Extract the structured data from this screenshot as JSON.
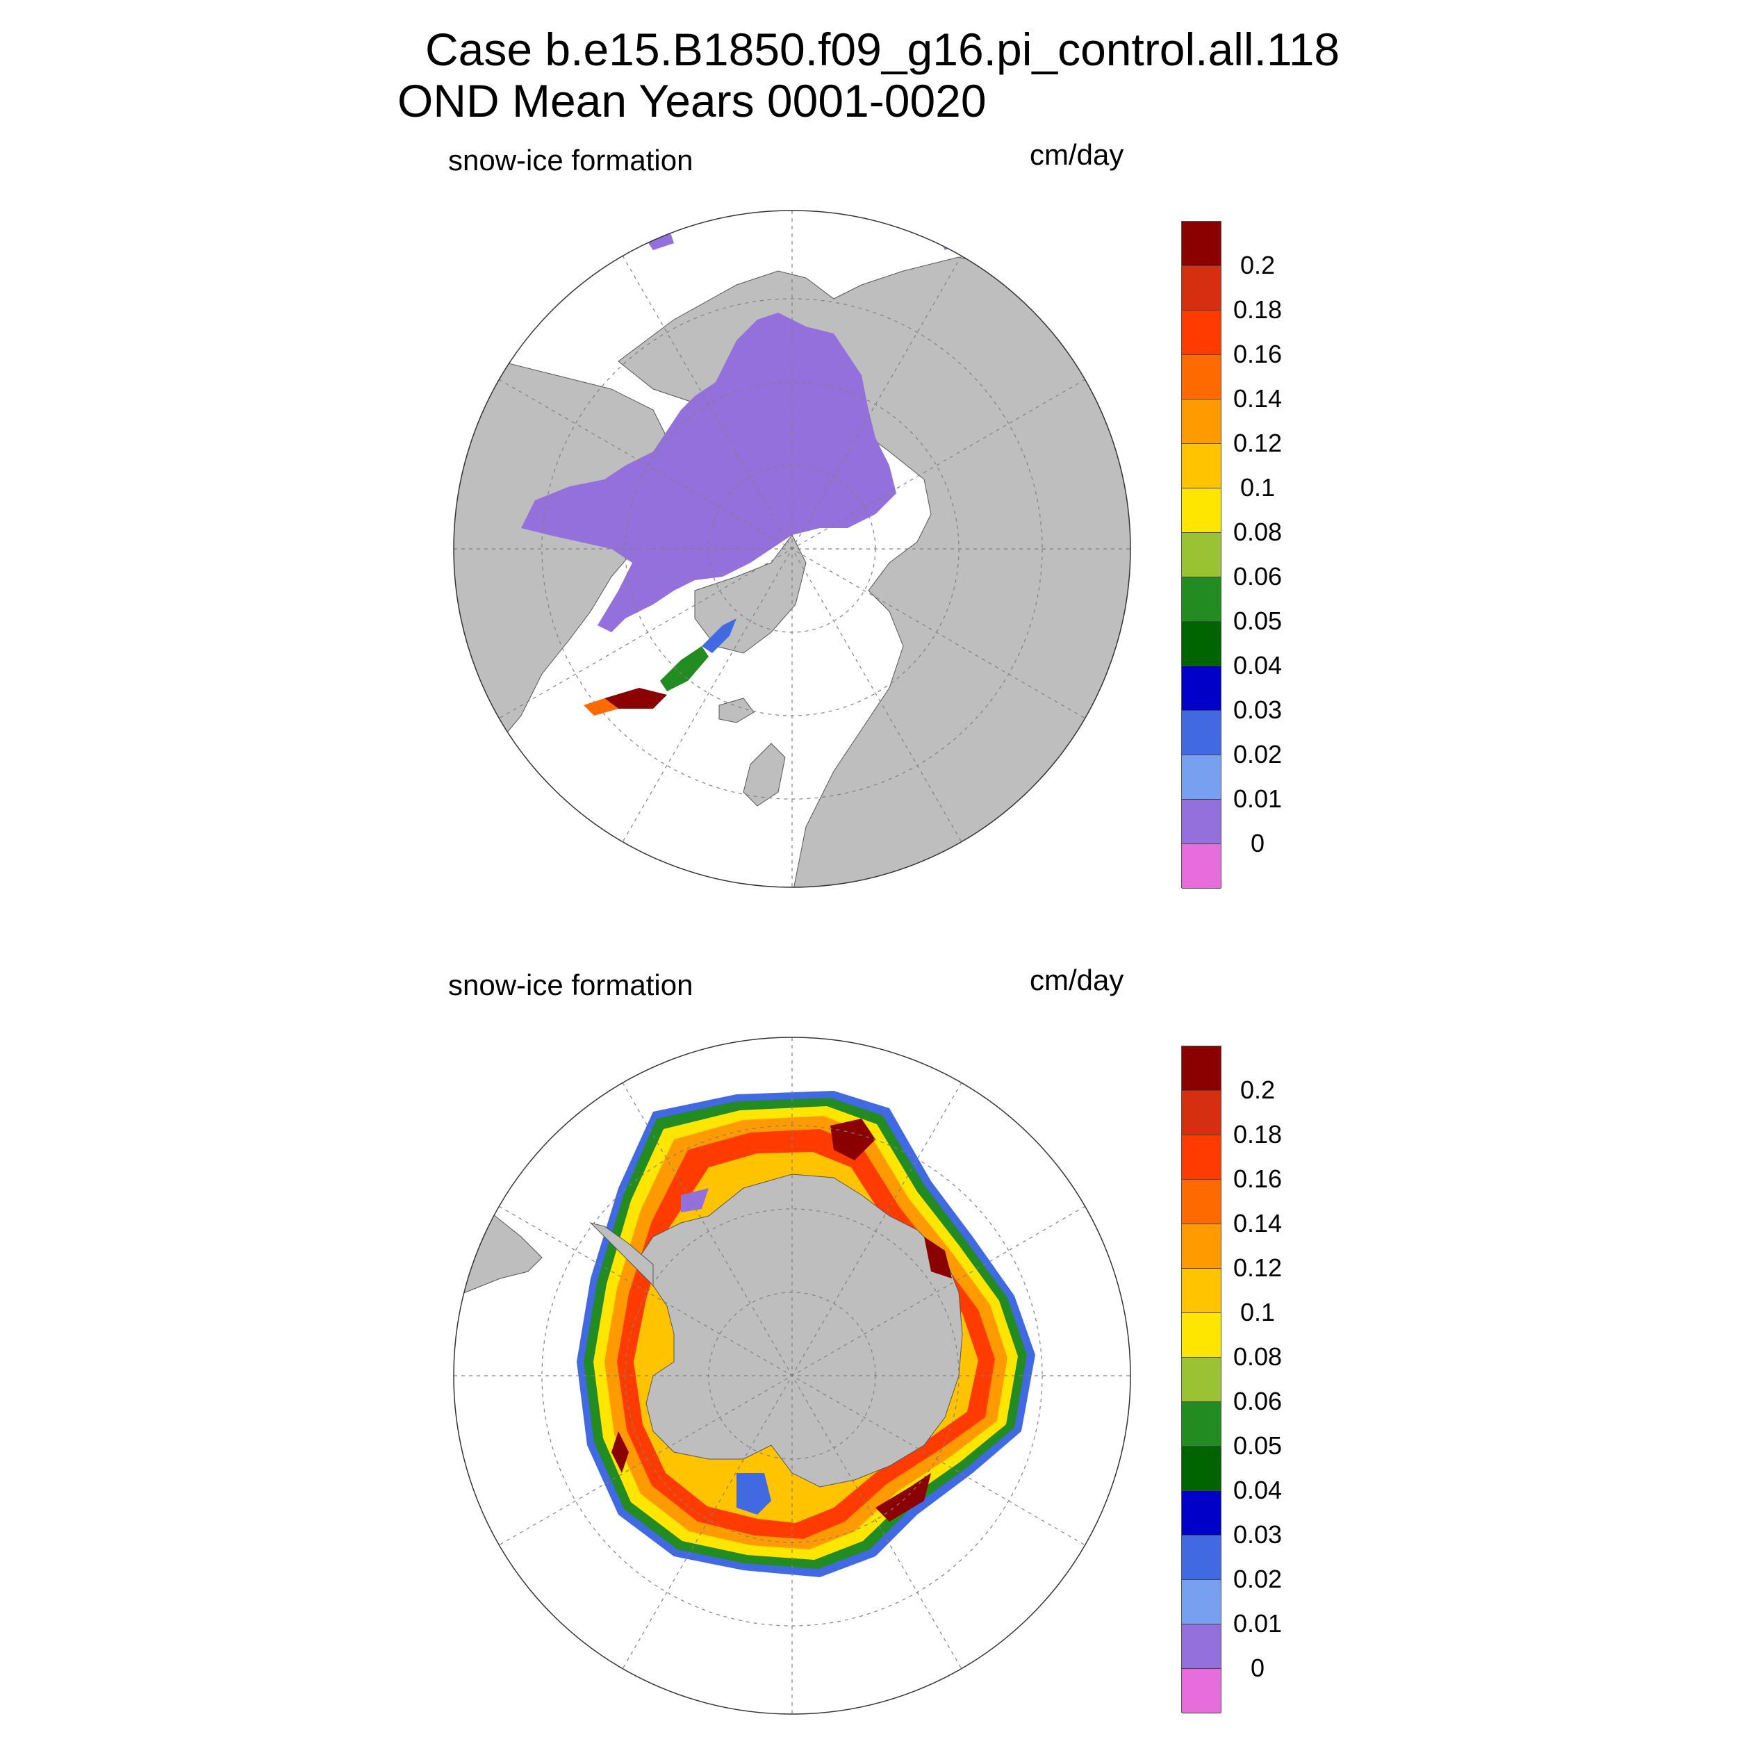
{
  "figure": {
    "title_line1": "Case b.e15.B1850.f09_g16.pi_control.all.118",
    "title_line2": "OND Mean   Years 0001-0020"
  },
  "panels": [
    {
      "variable": "snow-ice formation",
      "units": "cm/day",
      "hemisphere": "north"
    },
    {
      "variable": "snow-ice formation",
      "units": "cm/day",
      "hemisphere": "south"
    }
  ],
  "colorbar": {
    "tick_labels": [
      "0.2",
      "0.18",
      "0.16",
      "0.14",
      "0.12",
      "0.1",
      "0.08",
      "0.06",
      "0.05",
      "0.04",
      "0.03",
      "0.02",
      "0.01",
      "0"
    ],
    "colors_top_to_bottom": [
      "#8b0000",
      "#d62e10",
      "#ff3b00",
      "#ff6a00",
      "#ff9a00",
      "#ffc300",
      "#ffe600",
      "#9bc232",
      "#228b22",
      "#006400",
      "#0000c8",
      "#4169e1",
      "#78a0f0",
      "#9370db",
      "#e86ddc"
    ]
  },
  "colors": {
    "land": "#bebebe",
    "ocean": "#ffffff",
    "grid": "#808080"
  }
}
